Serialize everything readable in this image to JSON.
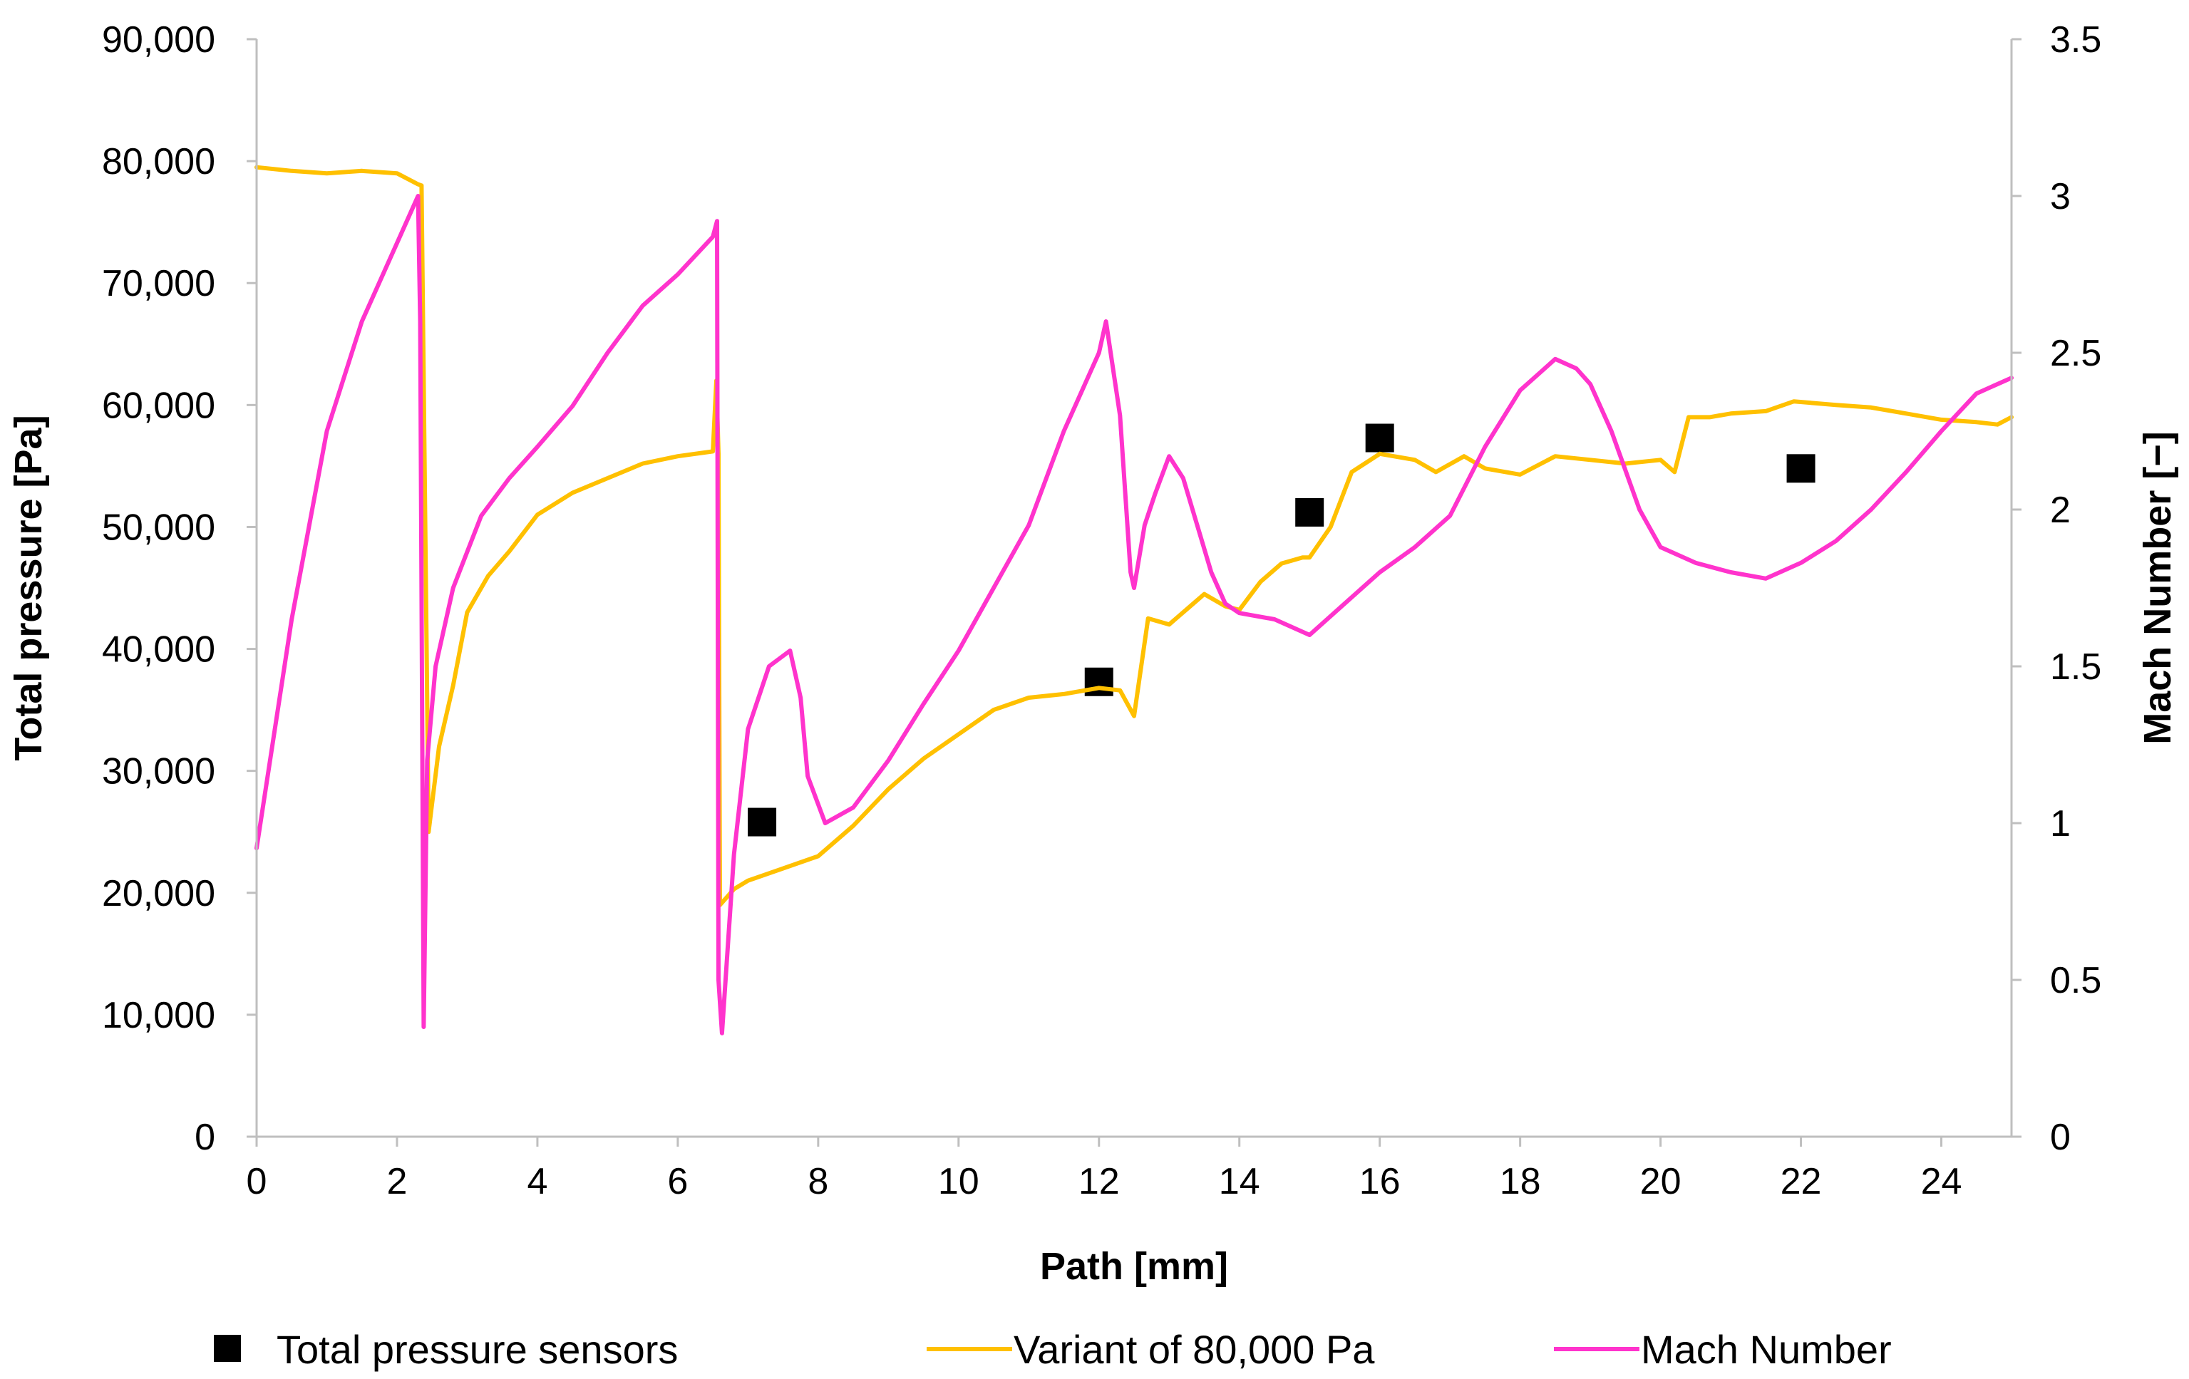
{
  "chart_data": {
    "type": "line",
    "xlabel": "Path [mm]",
    "ylabel": "Total pressure [Pa]",
    "y2label": "Mach Number [−]",
    "xlim": [
      0,
      25
    ],
    "ylim": [
      0,
      90000
    ],
    "y2lim": [
      0,
      3.5
    ],
    "x_ticks": [
      0,
      2,
      4,
      6,
      8,
      10,
      12,
      14,
      16,
      18,
      20,
      22,
      24
    ],
    "x_tick_labels": [
      "0",
      "2",
      "4",
      "6",
      "8",
      "10",
      "12",
      "14",
      "16",
      "18",
      "20",
      "22",
      "24"
    ],
    "y_ticks": [
      0,
      10000,
      20000,
      30000,
      40000,
      50000,
      60000,
      70000,
      80000,
      90000
    ],
    "y_tick_labels": [
      "0",
      "10,000",
      "20,000",
      "30,000",
      "40,000",
      "50,000",
      "60,000",
      "70,000",
      "80,000",
      "90,000"
    ],
    "y2_ticks": [
      0,
      0.5,
      1,
      1.5,
      2,
      2.5,
      3,
      3.5
    ],
    "y2_tick_labels": [
      "0",
      "0.5",
      "1",
      "1.5",
      "2",
      "2.5",
      "3",
      "3.5"
    ],
    "grid": false,
    "legend_position": "bottom",
    "series": [
      {
        "name": "Total pressure sensors",
        "kind": "marker",
        "marker": "square",
        "axis": "left",
        "color": "#000000",
        "x": [
          7.2,
          12.0,
          15.0,
          16.0,
          22.0
        ],
        "values": [
          25800,
          37300,
          51200,
          57300,
          54800
        ]
      },
      {
        "name": "Variant of 80,000 Pa",
        "kind": "line",
        "axis": "left",
        "color": "#FFC000",
        "x": [
          0,
          0.5,
          1,
          1.5,
          2,
          2.3,
          2.35,
          2.45,
          2.6,
          2.8,
          3.0,
          3.3,
          3.6,
          4.0,
          4.5,
          5.0,
          5.5,
          6.0,
          6.5,
          6.55,
          6.58,
          6.6,
          6.8,
          7.0,
          7.5,
          8.0,
          8.5,
          9.0,
          9.5,
          10.0,
          10.5,
          11.0,
          11.5,
          12.0,
          12.3,
          12.5,
          12.7,
          13.0,
          13.3,
          13.5,
          13.8,
          14.0,
          14.3,
          14.6,
          14.9,
          15.0,
          15.3,
          15.6,
          16.0,
          16.5,
          16.8,
          17.2,
          17.5,
          18.0,
          18.5,
          19.0,
          19.5,
          20.0,
          20.2,
          20.4,
          20.7,
          21.0,
          21.5,
          21.9,
          22.5,
          23.0,
          23.5,
          24.0,
          24.5,
          24.8,
          25.0
        ],
        "values": [
          79500,
          79200,
          79000,
          79200,
          79000,
          78100,
          78000,
          25000,
          32000,
          37000,
          43000,
          46000,
          48000,
          51000,
          52800,
          54000,
          55200,
          55800,
          56200,
          62000,
          56000,
          19000,
          20300,
          21000,
          22000,
          23000,
          25500,
          28500,
          31000,
          33000,
          35000,
          36000,
          36300,
          36800,
          36600,
          34500,
          42500,
          42000,
          43500,
          44500,
          43500,
          43200,
          45500,
          47000,
          47500,
          47500,
          50000,
          54500,
          56000,
          55500,
          54500,
          55800,
          54800,
          54300,
          55800,
          55500,
          55200,
          55500,
          54500,
          59000,
          59000,
          59300,
          59500,
          60300,
          60000,
          59800,
          59300,
          58800,
          58600,
          58400,
          59000
        ]
      },
      {
        "name": "Mach Number",
        "kind": "line",
        "axis": "right",
        "color": "#FF33CC",
        "x": [
          0,
          0.5,
          1.0,
          1.5,
          2.0,
          2.3,
          2.33,
          2.38,
          2.43,
          2.55,
          2.8,
          3.2,
          3.6,
          4.0,
          4.5,
          5.0,
          5.5,
          6.0,
          6.5,
          6.56,
          6.58,
          6.63,
          6.8,
          7.0,
          7.3,
          7.6,
          7.75,
          7.85,
          8.1,
          8.5,
          9.0,
          9.5,
          10.0,
          10.5,
          11.0,
          11.5,
          12.0,
          12.1,
          12.3,
          12.45,
          12.5,
          12.65,
          12.8,
          13.0,
          13.2,
          13.4,
          13.6,
          13.8,
          14.0,
          14.5,
          15.0,
          15.5,
          16.0,
          16.5,
          17.0,
          17.5,
          18.0,
          18.5,
          18.8,
          19.0,
          19.3,
          19.7,
          20.0,
          20.5,
          21.0,
          21.5,
          22.0,
          22.5,
          23.0,
          23.5,
          24.0,
          24.5,
          25.0
        ],
        "values": [
          0.92,
          1.65,
          2.25,
          2.6,
          2.85,
          3.0,
          2.6,
          0.35,
          1.2,
          1.5,
          1.75,
          1.98,
          2.1,
          2.2,
          2.33,
          2.5,
          2.65,
          2.75,
          2.87,
          2.92,
          0.5,
          0.33,
          0.9,
          1.3,
          1.5,
          1.55,
          1.4,
          1.15,
          1.0,
          1.05,
          1.2,
          1.38,
          1.55,
          1.75,
          1.95,
          2.25,
          2.5,
          2.6,
          2.3,
          1.8,
          1.75,
          1.95,
          2.05,
          2.17,
          2.1,
          1.95,
          1.8,
          1.7,
          1.67,
          1.65,
          1.6,
          1.7,
          1.8,
          1.88,
          1.98,
          2.2,
          2.38,
          2.48,
          2.45,
          2.4,
          2.25,
          2.0,
          1.88,
          1.83,
          1.8,
          1.78,
          1.83,
          1.9,
          2.0,
          2.12,
          2.25,
          2.37,
          2.42
        ]
      }
    ]
  }
}
